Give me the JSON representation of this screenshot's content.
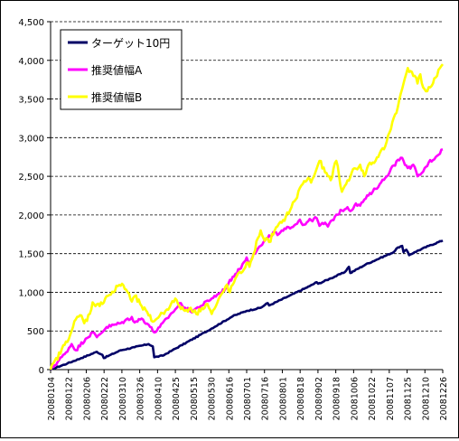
{
  "chart_data": {
    "type": "line",
    "title": "",
    "xlabel": "",
    "ylabel": "",
    "ylim": [
      0,
      4500
    ],
    "yticks": [
      0,
      500,
      1000,
      1500,
      2000,
      2500,
      3000,
      3500,
      4000,
      4500
    ],
    "ytick_labels": [
      "0",
      "500",
      "1,000",
      "1,500",
      "2,000",
      "2,500",
      "3,000",
      "3,500",
      "4,000",
      "4,500"
    ],
    "xtick_labels": [
      "20080104",
      "20080122",
      "20080206",
      "20080222",
      "20080310",
      "20080326",
      "20080410",
      "20080425",
      "20080515",
      "20080530",
      "20080616",
      "20080701",
      "20080716",
      "20080801",
      "20080818",
      "20080902",
      "20080918",
      "20081006",
      "20081022",
      "20081107",
      "20081125",
      "20081210",
      "20081226"
    ],
    "grid": "horizontal-dashed",
    "legend_position": "top-left",
    "n_points": 245,
    "series": [
      {
        "name": "ターゲット10円",
        "color": "#000066",
        "keypoints": [
          [
            0,
            0
          ],
          [
            12,
            80
          ],
          [
            22,
            150
          ],
          [
            33,
            230
          ],
          [
            37,
            190
          ],
          [
            38,
            150
          ],
          [
            50,
            250
          ],
          [
            60,
            290
          ],
          [
            70,
            330
          ],
          [
            73,
            300
          ],
          [
            74,
            160
          ],
          [
            80,
            180
          ],
          [
            87,
            250
          ],
          [
            110,
            480
          ],
          [
            130,
            690
          ],
          [
            140,
            760
          ],
          [
            150,
            800
          ],
          [
            155,
            860
          ],
          [
            156,
            830
          ],
          [
            170,
            950
          ],
          [
            185,
            1080
          ],
          [
            190,
            1130
          ],
          [
            191,
            1110
          ],
          [
            200,
            1180
          ],
          [
            210,
            1260
          ],
          [
            213,
            1330
          ],
          [
            214,
            1250
          ],
          [
            225,
            1360
          ],
          [
            235,
            1440
          ],
          [
            245,
            1520
          ],
          [
            248,
            1580
          ],
          [
            251,
            1600
          ],
          [
            252,
            1520
          ],
          [
            254,
            1550
          ],
          [
            256,
            1480
          ],
          [
            260,
            1520
          ],
          [
            270,
            1600
          ],
          [
            280,
            1670
          ]
        ]
      },
      {
        "name": "推奨値幅A",
        "color": "#FF00FF",
        "keypoints": [
          [
            0,
            0
          ],
          [
            10,
            200
          ],
          [
            15,
            330
          ],
          [
            18,
            250
          ],
          [
            25,
            400
          ],
          [
            30,
            480
          ],
          [
            33,
            420
          ],
          [
            40,
            550
          ],
          [
            50,
            600
          ],
          [
            58,
            680
          ],
          [
            60,
            610
          ],
          [
            65,
            660
          ],
          [
            70,
            580
          ],
          [
            74,
            480
          ],
          [
            78,
            550
          ],
          [
            85,
            700
          ],
          [
            93,
            860
          ],
          [
            96,
            800
          ],
          [
            100,
            750
          ],
          [
            107,
            820
          ],
          [
            115,
            920
          ],
          [
            120,
            980
          ],
          [
            125,
            1050
          ],
          [
            130,
            1200
          ],
          [
            135,
            1300
          ],
          [
            140,
            1450
          ],
          [
            142,
            1380
          ],
          [
            145,
            1500
          ],
          [
            150,
            1600
          ],
          [
            155,
            1700
          ],
          [
            160,
            1780
          ],
          [
            162,
            1740
          ],
          [
            168,
            1820
          ],
          [
            175,
            1880
          ],
          [
            178,
            1940
          ],
          [
            180,
            1870
          ],
          [
            184,
            1920
          ],
          [
            190,
            1960
          ],
          [
            192,
            1860
          ],
          [
            196,
            1900
          ],
          [
            198,
            1850
          ],
          [
            203,
            1980
          ],
          [
            208,
            2060
          ],
          [
            212,
            2100
          ],
          [
            214,
            2050
          ],
          [
            218,
            2150
          ],
          [
            221,
            2120
          ],
          [
            224,
            2200
          ],
          [
            230,
            2300
          ],
          [
            235,
            2400
          ],
          [
            240,
            2500
          ],
          [
            243,
            2600
          ],
          [
            245,
            2640
          ],
          [
            250,
            2740
          ],
          [
            252,
            2700
          ],
          [
            254,
            2640
          ],
          [
            257,
            2600
          ],
          [
            259,
            2650
          ],
          [
            262,
            2500
          ],
          [
            266,
            2560
          ],
          [
            270,
            2680
          ],
          [
            275,
            2750
          ],
          [
            280,
            2850
          ]
        ]
      },
      {
        "name": "推奨値幅B",
        "color": "#FFFF00",
        "keypoints": [
          [
            0,
            0
          ],
          [
            10,
            320
          ],
          [
            15,
            500
          ],
          [
            18,
            650
          ],
          [
            22,
            700
          ],
          [
            24,
            600
          ],
          [
            28,
            720
          ],
          [
            30,
            870
          ],
          [
            35,
            820
          ],
          [
            40,
            950
          ],
          [
            45,
            1000
          ],
          [
            48,
            1080
          ],
          [
            51,
            1110
          ],
          [
            55,
            1000
          ],
          [
            58,
            880
          ],
          [
            60,
            950
          ],
          [
            65,
            820
          ],
          [
            70,
            700
          ],
          [
            73,
            620
          ],
          [
            78,
            700
          ],
          [
            82,
            760
          ],
          [
            86,
            850
          ],
          [
            90,
            900
          ],
          [
            92,
            820
          ],
          [
            96,
            760
          ],
          [
            100,
            800
          ],
          [
            104,
            720
          ],
          [
            108,
            800
          ],
          [
            112,
            850
          ],
          [
            115,
            720
          ],
          [
            118,
            820
          ],
          [
            123,
            1000
          ],
          [
            126,
            1100
          ],
          [
            128,
            1000
          ],
          [
            132,
            1180
          ],
          [
            136,
            1250
          ],
          [
            140,
            1380
          ],
          [
            142,
            1330
          ],
          [
            145,
            1500
          ],
          [
            148,
            1700
          ],
          [
            150,
            1800
          ],
          [
            152,
            1700
          ],
          [
            156,
            1650
          ],
          [
            160,
            1800
          ],
          [
            165,
            1900
          ],
          [
            168,
            1980
          ],
          [
            172,
            2100
          ],
          [
            175,
            2200
          ],
          [
            178,
            2350
          ],
          [
            180,
            2400
          ],
          [
            184,
            2480
          ],
          [
            186,
            2420
          ],
          [
            190,
            2600
          ],
          [
            192,
            2700
          ],
          [
            196,
            2550
          ],
          [
            200,
            2450
          ],
          [
            202,
            2600
          ],
          [
            204,
            2700
          ],
          [
            206,
            2500
          ],
          [
            208,
            2300
          ],
          [
            211,
            2400
          ],
          [
            215,
            2550
          ],
          [
            218,
            2600
          ],
          [
            221,
            2650
          ],
          [
            224,
            2500
          ],
          [
            227,
            2650
          ],
          [
            232,
            2700
          ],
          [
            235,
            2800
          ],
          [
            238,
            2850
          ],
          [
            240,
            2950
          ],
          [
            244,
            3200
          ],
          [
            248,
            3400
          ],
          [
            252,
            3700
          ],
          [
            255,
            3900
          ],
          [
            258,
            3850
          ],
          [
            260,
            3800
          ],
          [
            262,
            3700
          ],
          [
            264,
            3820
          ],
          [
            266,
            3650
          ],
          [
            268,
            3600
          ],
          [
            271,
            3650
          ],
          [
            273,
            3700
          ],
          [
            276,
            3800
          ],
          [
            278,
            3900
          ],
          [
            280,
            3950
          ]
        ]
      }
    ]
  }
}
